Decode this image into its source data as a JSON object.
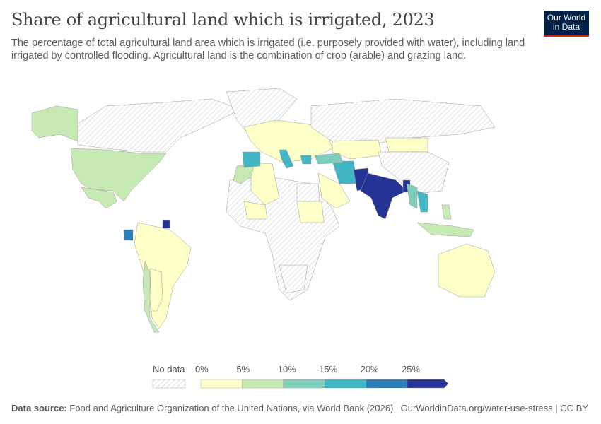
{
  "header": {
    "title": "Share of agricultural land which is irrigated, 2023",
    "subtitle": "The percentage of total agricultural land area which is irrigated (i.e. purposely provided with water), including land irrigated by controlled flooding. Agricultural land is the combination of crop (arable) and grazing land.",
    "logo_line1": "Our World",
    "logo_line2": "in Data"
  },
  "legend": {
    "no_data_label": "No data",
    "ticks": [
      "0%",
      "5%",
      "10%",
      "15%",
      "20%",
      "25%"
    ],
    "bin_colors": [
      "#ffffc8",
      "#c7e9b4",
      "#7fcdbb",
      "#41b6c4",
      "#2c7fb8",
      "#253494"
    ],
    "no_data_color": "#e8e8e8"
  },
  "map_regions": [
    {
      "region": "north-america-usa",
      "bin": 1
    },
    {
      "region": "canada",
      "bin": -1
    },
    {
      "region": "alaska",
      "bin": 1
    },
    {
      "region": "greenland",
      "bin": -1
    },
    {
      "region": "mexico",
      "bin": 1
    },
    {
      "region": "south-america",
      "bin": 0
    },
    {
      "region": "chile",
      "bin": 1
    },
    {
      "region": "argentina-west",
      "bin": 0
    },
    {
      "region": "ecuador",
      "bin": 4
    },
    {
      "region": "suriname",
      "bin": 5
    },
    {
      "region": "africa",
      "bin": -1
    },
    {
      "region": "algeria",
      "bin": 0
    },
    {
      "region": "morocco",
      "bin": 1
    },
    {
      "region": "egypt",
      "bin": -1
    },
    {
      "region": "sudan",
      "bin": 0
    },
    {
      "region": "west-africa",
      "bin": 0
    },
    {
      "region": "south-africa",
      "bin": -1
    },
    {
      "region": "europe",
      "bin": 0
    },
    {
      "region": "spain",
      "bin": 3
    },
    {
      "region": "italy",
      "bin": 3
    },
    {
      "region": "greece",
      "bin": 3
    },
    {
      "region": "russia",
      "bin": -1
    },
    {
      "region": "kazakhstan",
      "bin": 0
    },
    {
      "region": "mongolia",
      "bin": 0
    },
    {
      "region": "china",
      "bin": -1
    },
    {
      "region": "iran",
      "bin": 3
    },
    {
      "region": "turkey",
      "bin": 2
    },
    {
      "region": "saudi-arabia",
      "bin": 0
    },
    {
      "region": "pakistan",
      "bin": 5
    },
    {
      "region": "india",
      "bin": 5
    },
    {
      "region": "bangladesh",
      "bin": 5
    },
    {
      "region": "myanmar",
      "bin": 2
    },
    {
      "region": "thailand",
      "bin": 3
    },
    {
      "region": "indonesia",
      "bin": 1
    },
    {
      "region": "philippines",
      "bin": 1
    },
    {
      "region": "australia",
      "bin": 0
    }
  ],
  "footer": {
    "source_label": "Data source:",
    "source_text": "Food and Agriculture Organization of the United Nations, via World Bank (2026)",
    "url": "OurWorldinData.org/water-use-stress | CC BY"
  }
}
